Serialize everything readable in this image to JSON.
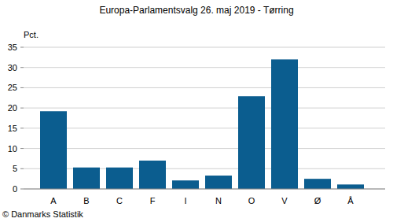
{
  "chart_data": {
    "type": "bar",
    "title": "Europa-Parlamentsvalg 26. maj 2019 - Tørring",
    "y_label": "Pct.",
    "source": "© Danmarks Statistik",
    "categories": [
      "A",
      "B",
      "C",
      "F",
      "I",
      "N",
      "O",
      "V",
      "Ø",
      "Å"
    ],
    "values": [
      19.2,
      5.3,
      5.3,
      7.0,
      2.1,
      3.3,
      22.9,
      32.0,
      2.5,
      1.1
    ],
    "color": "#0b5d8f",
    "ylim": [
      0,
      35
    ],
    "yticks": [
      0,
      5,
      10,
      15,
      20,
      25,
      30,
      35
    ],
    "grid": true
  }
}
